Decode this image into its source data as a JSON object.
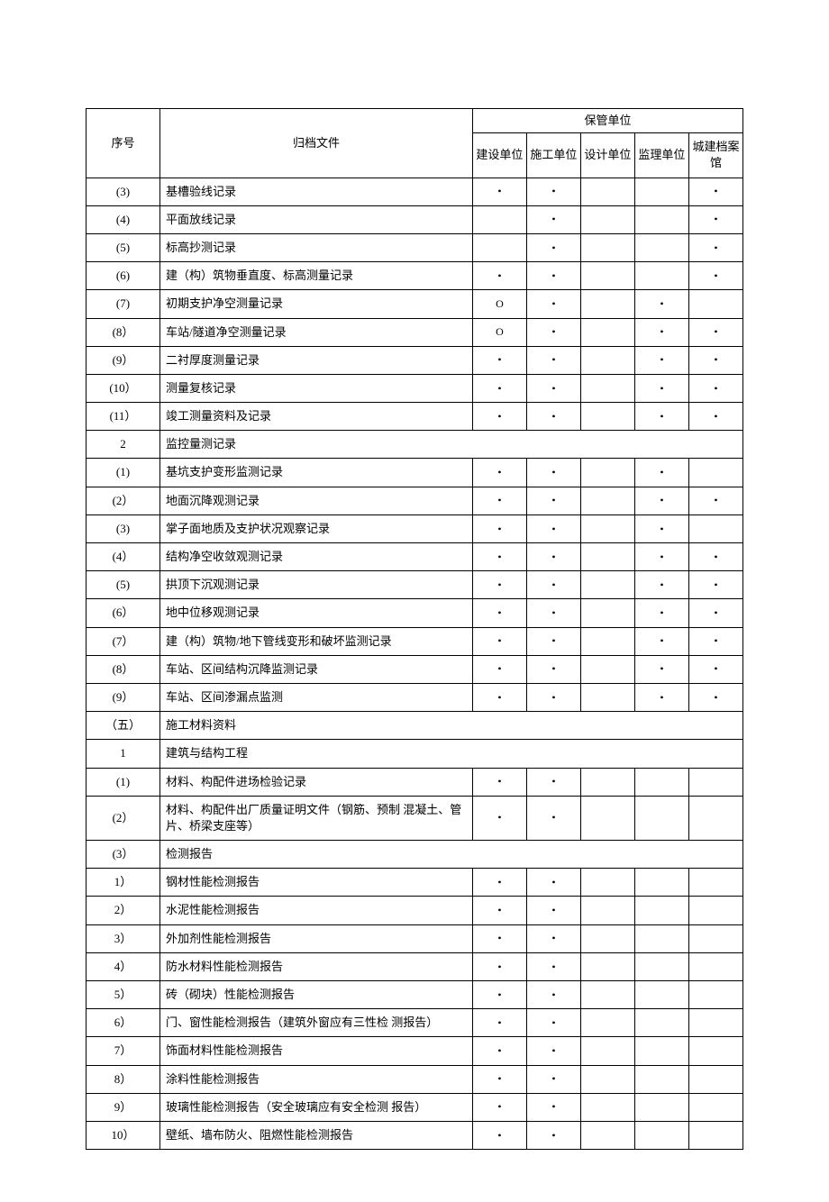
{
  "marks": {
    "dot": "•",
    "circle": "O"
  },
  "header": {
    "seq": "序号",
    "file": "归档文件",
    "group": "保管单位",
    "units": [
      "建设单位",
      "施工单位",
      "设计单位",
      "监理单位",
      "城建档案馆"
    ]
  },
  "rows": [
    {
      "seq": "(3)",
      "file": "基槽验线记录",
      "u": [
        "•",
        "•",
        "",
        "",
        "•"
      ]
    },
    {
      "seq": "(4)",
      "file": "平面放线记录",
      "u": [
        "",
        "•",
        "",
        "",
        "•"
      ]
    },
    {
      "seq": "(5)",
      "file": "标高抄测记录",
      "u": [
        "",
        "•",
        "",
        "",
        "•"
      ]
    },
    {
      "seq": "(6)",
      "file": "建（构）筑物垂直度、标高测量记录",
      "u": [
        "•",
        "•",
        "",
        "",
        "•"
      ]
    },
    {
      "seq": "(7)",
      "file": "初期支护净空测量记录",
      "u": [
        "O",
        "•",
        "",
        "•",
        ""
      ]
    },
    {
      "seq": "(8）",
      "file": "车站/隧道净空测量记录",
      "u": [
        "O",
        "•",
        "",
        "•",
        "•"
      ]
    },
    {
      "seq": "(9）",
      "file": "二衬厚度测量记录",
      "u": [
        "•",
        "•",
        "",
        "•",
        "•"
      ]
    },
    {
      "seq": "(10）",
      "file": "测量复核记录",
      "u": [
        "•",
        "•",
        "",
        "•",
        "•"
      ]
    },
    {
      "seq": "(11）",
      "file": "竣工测量资料及记录",
      "u": [
        "•",
        "•",
        "",
        "•",
        "•"
      ]
    },
    {
      "seq": "2",
      "file": "监控量测记录",
      "section": true
    },
    {
      "seq": "(1)",
      "file": "基坑支护变形监测记录",
      "u": [
        "•",
        "•",
        "",
        "•",
        ""
      ]
    },
    {
      "seq": "(2）",
      "file": "地面沉降观测记录",
      "u": [
        "•",
        "•",
        "",
        "•",
        "•"
      ]
    },
    {
      "seq": "(3)",
      "file": "掌子面地质及支护状况观察记录",
      "u": [
        "•",
        "•",
        "",
        "•",
        ""
      ]
    },
    {
      "seq": "(4）",
      "file": "结构净空收敛观测记录",
      "u": [
        "•",
        "•",
        "",
        "•",
        "•"
      ]
    },
    {
      "seq": "(5)",
      "file": "拱顶下沉观测记录",
      "u": [
        "•",
        "•",
        "",
        "•",
        "•"
      ]
    },
    {
      "seq": "(6）",
      "file": "地中位移观测记录",
      "u": [
        "•",
        "•",
        "",
        "•",
        "•"
      ]
    },
    {
      "seq": "(7）",
      "file": "建（构）筑物/地下管线变形和破坏监测记录",
      "u": [
        "•",
        "•",
        "",
        "•",
        "•"
      ]
    },
    {
      "seq": "(8）",
      "file": "车站、区间结构沉降监测记录",
      "u": [
        "•",
        "•",
        "",
        "•",
        "•"
      ]
    },
    {
      "seq": "(9）",
      "file": "车站、区间渗漏点监测",
      "u": [
        "•",
        "•",
        "",
        "•",
        "•"
      ]
    },
    {
      "seq": "（五）",
      "file": "施工材料资料",
      "section": true
    },
    {
      "seq": "1",
      "file": "建筑与结构工程",
      "section": true
    },
    {
      "seq": "(1)",
      "file": "材料、构配件进场检验记录",
      "u": [
        "•",
        "•",
        "",
        "",
        ""
      ]
    },
    {
      "seq": "(2）",
      "file": "材料、构配件出厂质量证明文件（钢筋、预制 混凝土、管片、桥梁支座等）",
      "u": [
        "•",
        "•",
        "",
        "",
        ""
      ]
    },
    {
      "seq": "(3）",
      "file": "检测报告",
      "section": true
    },
    {
      "seq": "1）",
      "file": "钢材性能检测报告",
      "u": [
        "•",
        "•",
        "",
        "",
        ""
      ]
    },
    {
      "seq": "2）",
      "file": "水泥性能检测报告",
      "u": [
        "•",
        "•",
        "",
        "",
        ""
      ]
    },
    {
      "seq": "3）",
      "file": "外加剂性能检测报告",
      "u": [
        "•",
        "•",
        "",
        "",
        ""
      ]
    },
    {
      "seq": "4）",
      "file": "防水材料性能检测报告",
      "u": [
        "•",
        "•",
        "",
        "",
        ""
      ]
    },
    {
      "seq": "5）",
      "file": "砖（砌块）性能检测报告",
      "u": [
        "•",
        "•",
        "",
        "",
        ""
      ]
    },
    {
      "seq": "6）",
      "file": "门、窗性能检测报告（建筑外窗应有三性检 测报告）",
      "u": [
        "•",
        "•",
        "",
        "",
        ""
      ]
    },
    {
      "seq": "7）",
      "file": "饰面材料性能检测报告",
      "u": [
        "•",
        "•",
        "",
        "",
        ""
      ]
    },
    {
      "seq": "8）",
      "file": "涂料性能检测报告",
      "u": [
        "•",
        "•",
        "",
        "",
        ""
      ]
    },
    {
      "seq": "9）",
      "file": "玻璃性能检测报告（安全玻璃应有安全检测 报告）",
      "u": [
        "•",
        "•",
        "",
        "",
        ""
      ]
    },
    {
      "seq": "10）",
      "file": "壁纸、墙布防火、阻燃性能检测报告",
      "u": [
        "•",
        "•",
        "",
        "",
        ""
      ]
    }
  ]
}
